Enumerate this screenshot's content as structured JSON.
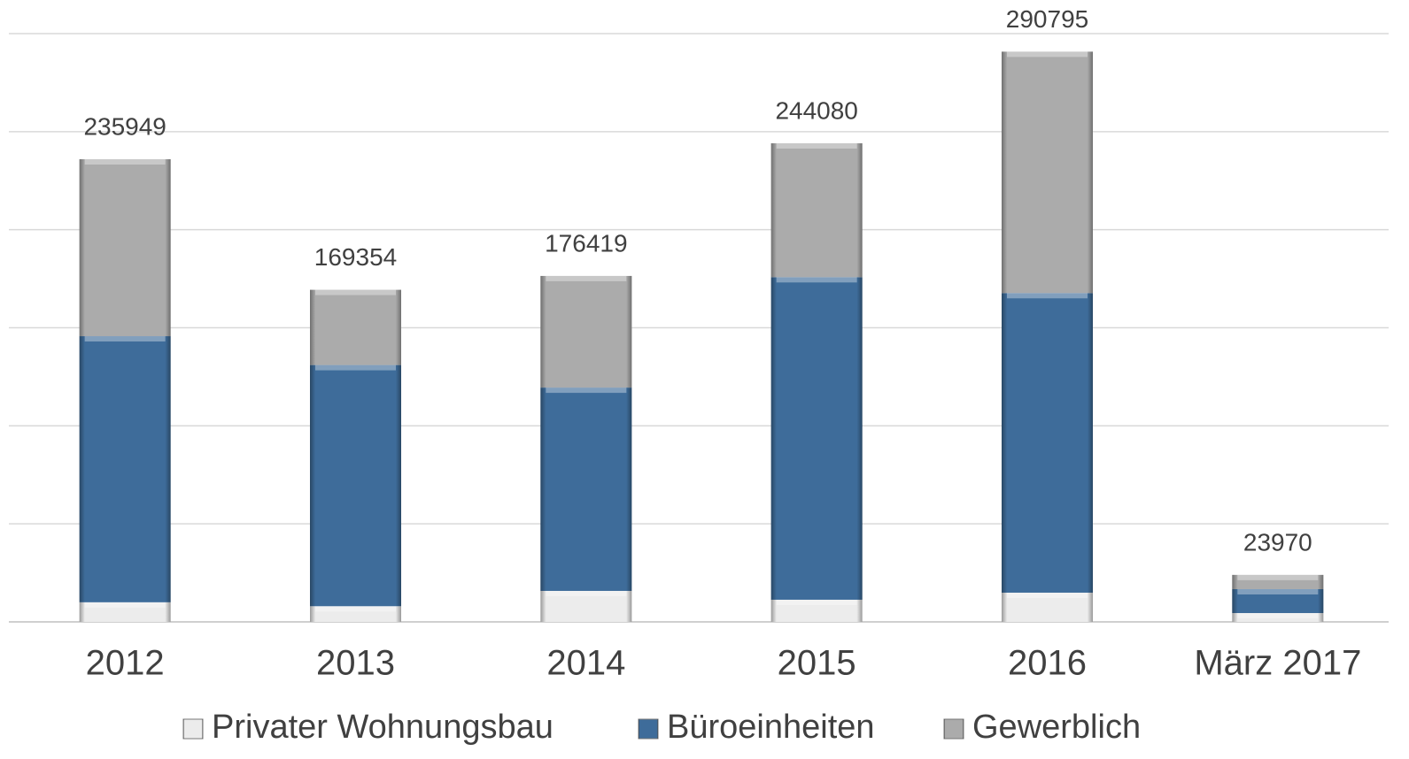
{
  "chart_data": {
    "type": "stacked_bar",
    "categories": [
      "2012",
      "2013",
      "2014",
      "2015",
      "2016",
      "März 2017"
    ],
    "series": [
      {
        "name": "Privater Wohnungsbau",
        "color": "#ececec",
        "values": [
          10000,
          8000,
          15800,
          11300,
          14900,
          4500
        ]
      },
      {
        "name": "Büroeinheiten",
        "color": "#3e6c9a",
        "values": [
          135700,
          123000,
          103700,
          164500,
          152800,
          12200
        ]
      },
      {
        "name": "Gewerblich",
        "color": "#ababab",
        "values": [
          90249,
          38354,
          56919,
          68280,
          123095,
          7270
        ]
      }
    ],
    "totals": [
      235949,
      169354,
      176419,
      244080,
      290795,
      23970
    ],
    "ylim": [
      0,
      300000
    ],
    "yticks": [
      0,
      50000,
      100000,
      150000,
      200000,
      250000,
      300000
    ],
    "grid": true,
    "legend": "bottom"
  }
}
